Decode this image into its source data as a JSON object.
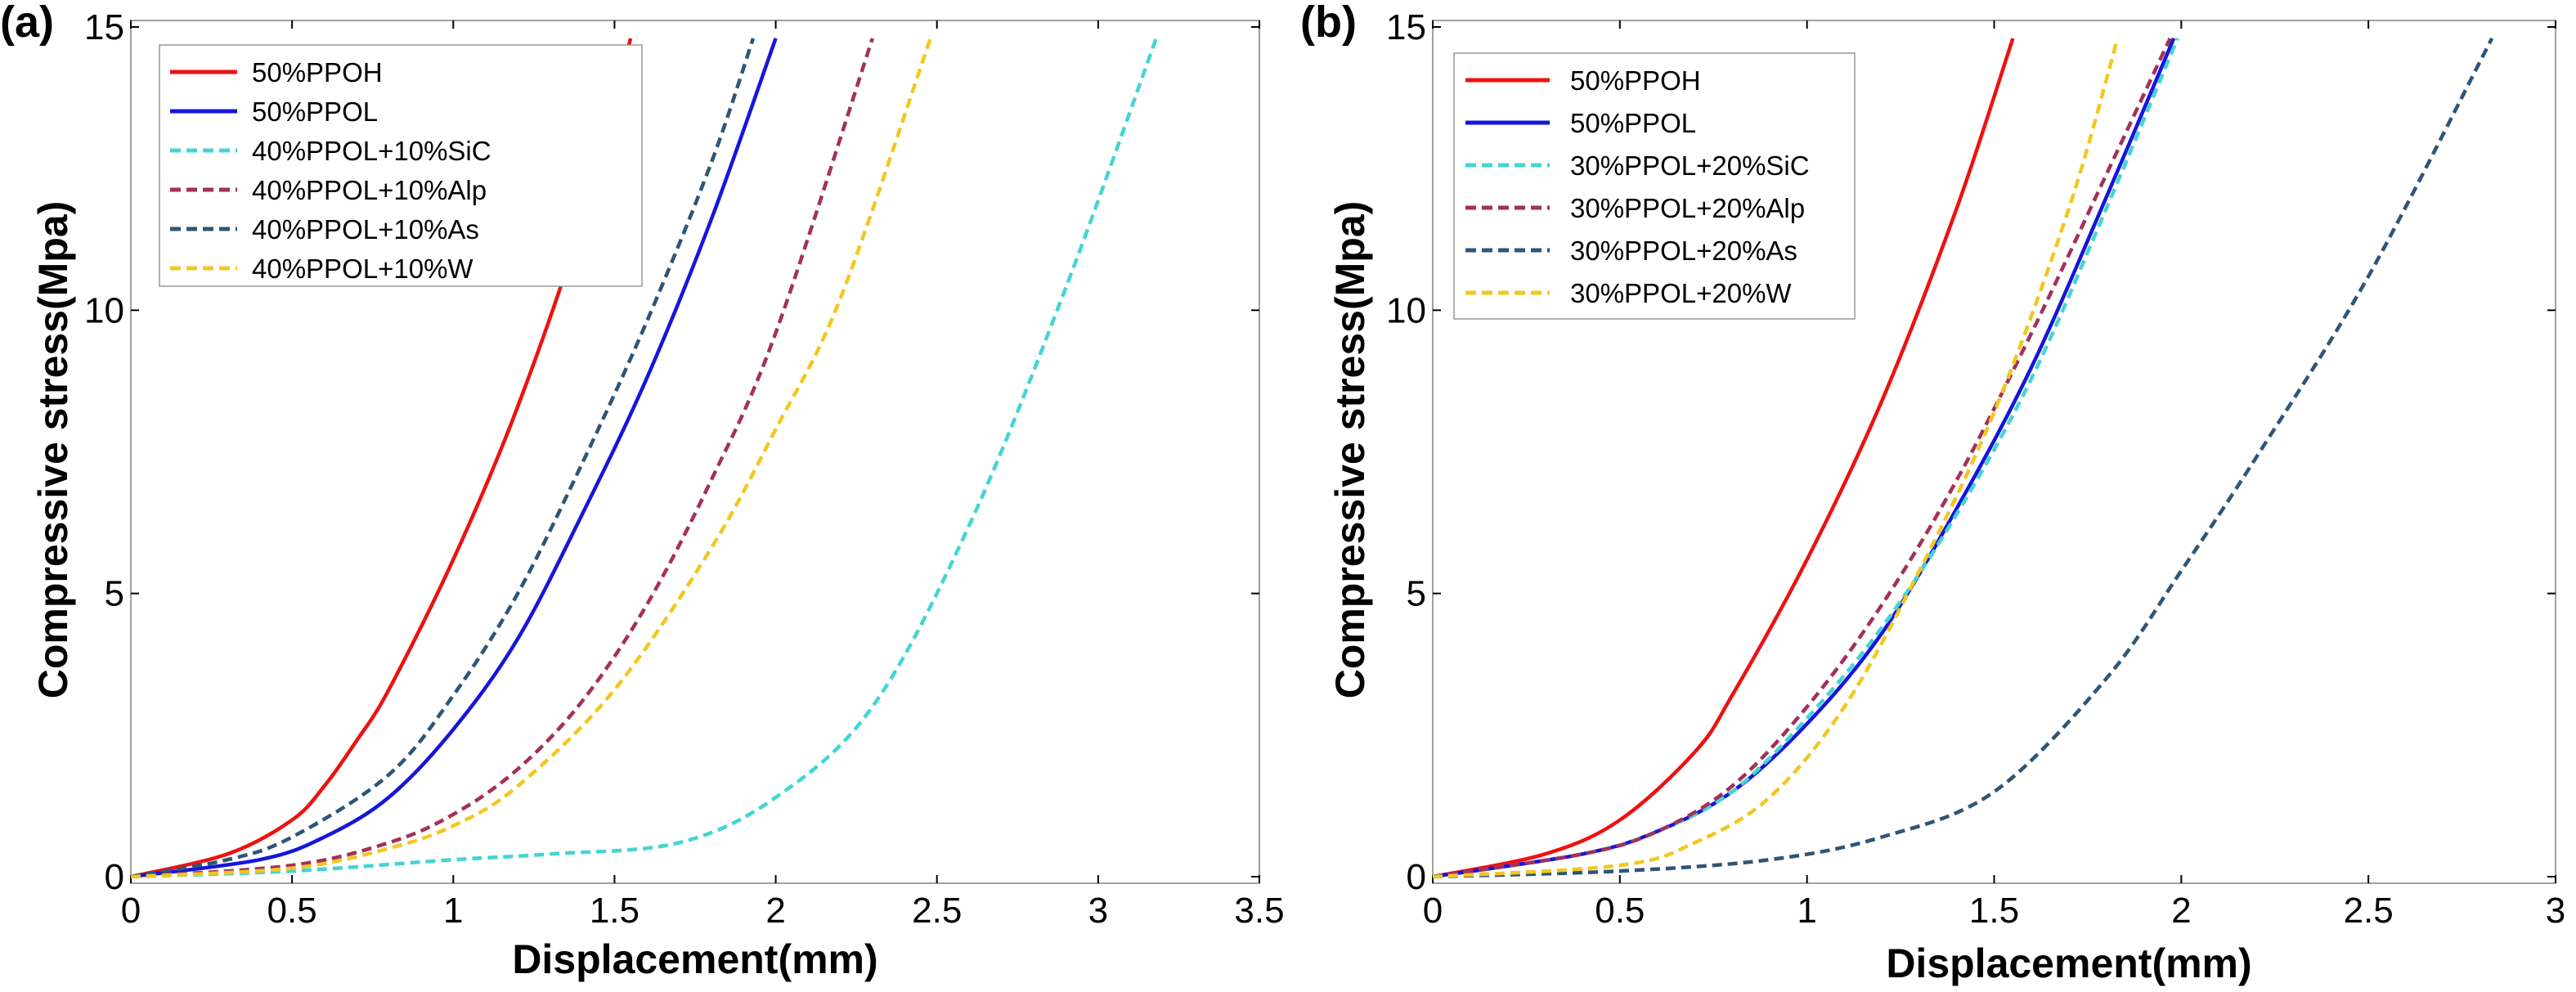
{
  "chart_data": [
    {
      "type": "line",
      "panel_label": "(a)",
      "xlabel": "Displacement(mm)",
      "ylabel": "Compressive stress(Mpa)",
      "xlim": [
        0,
        3.5
      ],
      "ylim": [
        0,
        15
      ],
      "xticks": [
        "0",
        "0.5",
        "1",
        "1.5",
        "2",
        "2.5",
        "3",
        "3.5"
      ],
      "yticks": [
        "0",
        "5",
        "10",
        "15"
      ],
      "legend_position": "top-left",
      "grid": false,
      "series": [
        {
          "name": "50%PPOH",
          "color": "#ee1111",
          "dash": "solid",
          "x": [
            0,
            0.3,
            0.5,
            0.6,
            0.7,
            0.8,
            1.0,
            1.2,
            1.4,
            1.55
          ],
          "y": [
            0,
            0.4,
            1.0,
            1.6,
            2.4,
            3.3,
            5.6,
            8.3,
            11.6,
            14.8
          ]
        },
        {
          "name": "50%PPOL",
          "color": "#1515dd",
          "dash": "solid",
          "x": [
            0,
            0.4,
            0.6,
            0.8,
            1.0,
            1.2,
            1.4,
            1.6,
            1.8,
            2.0
          ],
          "y": [
            0,
            0.3,
            0.7,
            1.4,
            2.6,
            4.2,
            6.4,
            8.8,
            11.6,
            14.8
          ]
        },
        {
          "name": "40%PPOL+10%SiC",
          "color": "#44d4d4",
          "dash": "dashed",
          "x": [
            0,
            0.5,
            1.0,
            1.3,
            1.7,
            2.0,
            2.3,
            2.6,
            2.9,
            3.18
          ],
          "y": [
            0,
            0.1,
            0.3,
            0.4,
            0.6,
            1.4,
            3.0,
            6.2,
            10.4,
            14.8
          ]
        },
        {
          "name": "40%PPOL+10%Alp",
          "color": "#a4305a",
          "dash": "dashed",
          "x": [
            0,
            0.5,
            0.8,
            1.0,
            1.2,
            1.4,
            1.6,
            1.8,
            2.0,
            2.3
          ],
          "y": [
            0,
            0.2,
            0.6,
            1.1,
            1.9,
            3.1,
            4.8,
            7.0,
            9.6,
            14.8
          ]
        },
        {
          "name": "40%PPOL+10%As",
          "color": "#2e5577",
          "dash": "dashed",
          "x": [
            0,
            0.3,
            0.5,
            0.8,
            1.0,
            1.2,
            1.4,
            1.6,
            1.8,
            1.93
          ],
          "y": [
            0,
            0.3,
            0.7,
            1.8,
            3.2,
            5.0,
            7.3,
            9.8,
            12.6,
            14.8
          ]
        },
        {
          "name": "40%PPOL+10%W",
          "color": "#f2c720",
          "dash": "dashed",
          "x": [
            0,
            0.5,
            0.8,
            1.0,
            1.2,
            1.5,
            1.8,
            2.0,
            2.2,
            2.48
          ],
          "y": [
            0,
            0.15,
            0.5,
            0.9,
            1.6,
            3.3,
            5.8,
            7.9,
            10.2,
            14.8
          ]
        }
      ]
    },
    {
      "type": "line",
      "panel_label": "(b)",
      "xlabel": "Displacement(mm)",
      "ylabel": "Compressive stress(Mpa)",
      "xlim": [
        0,
        3
      ],
      "ylim": [
        0,
        15
      ],
      "xticks": [
        "0",
        "0.5",
        "1",
        "1.5",
        "2",
        "2.5",
        "3"
      ],
      "yticks": [
        "0",
        "5",
        "10",
        "15"
      ],
      "legend_position": "top-left",
      "grid": false,
      "series": [
        {
          "name": "50%PPOH",
          "color": "#ee1111",
          "dash": "solid",
          "x": [
            0,
            0.3,
            0.5,
            0.7,
            0.8,
            1.0,
            1.2,
            1.4,
            1.55
          ],
          "y": [
            0,
            0.4,
            1.0,
            2.2,
            3.2,
            5.6,
            8.4,
            11.8,
            14.8
          ]
        },
        {
          "name": "50%PPOL",
          "color": "#1515dd",
          "dash": "solid",
          "x": [
            0,
            0.4,
            0.6,
            0.8,
            1.0,
            1.2,
            1.4,
            1.6,
            1.8,
            1.98
          ],
          "y": [
            0,
            0.4,
            0.8,
            1.5,
            2.7,
            4.3,
            6.5,
            9.0,
            12.0,
            14.8
          ]
        },
        {
          "name": "30%PPOL+20%SiC",
          "color": "#44d4d4",
          "dash": "dashed",
          "x": [
            0,
            0.4,
            0.6,
            0.8,
            1.0,
            1.2,
            1.4,
            1.6,
            1.8,
            1.99
          ],
          "y": [
            0,
            0.4,
            0.8,
            1.5,
            2.8,
            4.4,
            6.4,
            8.8,
            11.8,
            14.8
          ]
        },
        {
          "name": "30%PPOL+20%Alp",
          "color": "#a4305a",
          "dash": "dashed",
          "x": [
            0,
            0.4,
            0.6,
            0.8,
            1.0,
            1.2,
            1.4,
            1.6,
            1.8,
            1.97
          ],
          "y": [
            0,
            0.4,
            0.8,
            1.6,
            3.0,
            4.8,
            7.0,
            9.6,
            12.4,
            14.8
          ]
        },
        {
          "name": "30%PPOL+20%As",
          "color": "#2e5577",
          "dash": "dashed",
          "x": [
            0,
            0.5,
            0.9,
            1.2,
            1.5,
            1.8,
            2.0,
            2.2,
            2.5,
            2.83
          ],
          "y": [
            0,
            0.1,
            0.3,
            0.7,
            1.5,
            3.5,
            5.4,
            7.4,
            10.6,
            14.8
          ]
        },
        {
          "name": "30%PPOL+20%W",
          "color": "#f2c720",
          "dash": "dashed",
          "x": [
            0,
            0.5,
            0.7,
            0.9,
            1.1,
            1.3,
            1.5,
            1.7,
            1.83
          ],
          "y": [
            0,
            0.2,
            0.6,
            1.4,
            3.0,
            5.4,
            8.2,
            11.8,
            14.8
          ]
        }
      ]
    }
  ]
}
